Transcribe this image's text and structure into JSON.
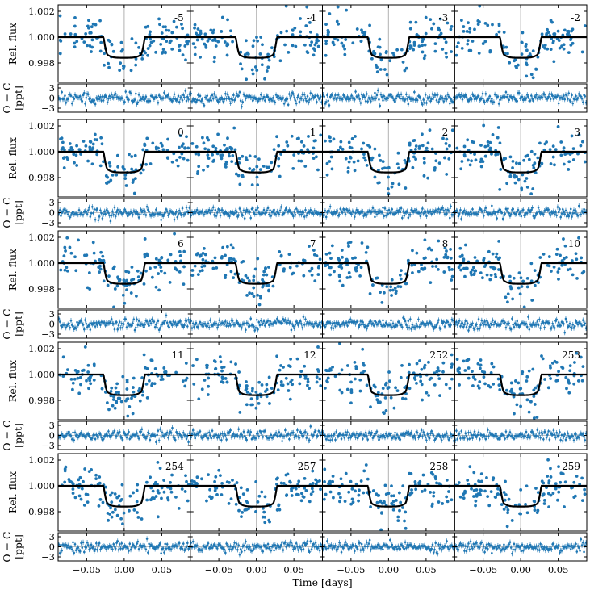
{
  "figure": {
    "xlabel": "Time [days]",
    "flux_ylabel": "Rel. flux",
    "resid_ylabel_line1": "O − C",
    "resid_ylabel_line2": "[ppt]"
  },
  "chart_data": {
    "type": "scatter",
    "layout": {
      "rows": 5,
      "cols": 4
    },
    "epochs": [
      "-5",
      "-4",
      "-3",
      "-2",
      "0",
      "1",
      "2",
      "3",
      "6",
      "7",
      "8",
      "10",
      "11",
      "12",
      "252",
      "253",
      "254",
      "257",
      "258",
      "259"
    ],
    "x_axis": {
      "label": "Time [days]",
      "range": [
        -0.088,
        0.088
      ],
      "ticks": [
        -0.05,
        0.0,
        0.05
      ],
      "tick_labels": [
        "−0.05",
        "0.00",
        "0.05"
      ]
    },
    "flux_axis": {
      "label": "Rel. flux",
      "range": [
        0.9965,
        1.0025
      ],
      "ticks": [
        0.998,
        1.0,
        1.002
      ],
      "tick_labels": [
        "0.998",
        "1.000",
        "1.002"
      ]
    },
    "residual_axis": {
      "label": "O − C [ppt]",
      "range": [
        -4.2,
        4.2
      ],
      "ticks": [
        -3,
        0,
        3
      ],
      "tick_labels": [
        "−3",
        "0",
        "3"
      ]
    },
    "transit_model": {
      "baseline": 1.0,
      "depth": 0.0016,
      "half_duration": 0.0275,
      "ingress": 0.006,
      "color": "#000000"
    },
    "mid_transit_line": {
      "x": 0.0,
      "color": "#bfbfbf"
    },
    "point_color": "#1f77b4",
    "grid": false,
    "legend": "none"
  }
}
